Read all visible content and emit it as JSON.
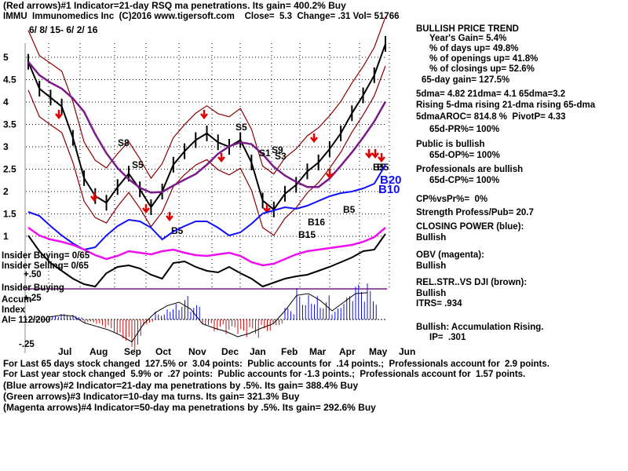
{
  "header": {
    "line1": "(Red arrows)#1 Indicator=21-day RSQ ma penetrations. Its gain= 400.2% Buy",
    "line2": "IMMU  Immunomedics Inc  (C)2016 www.tigersoft.com    Close=  5.3  Change= .31 Vol= 51766",
    "date_range": "6/ 8/ 15- 6/ 2/ 16"
  },
  "left_labels": {
    "insider_buying": "Insider Buying= 0/65",
    "insider_selling": "Insider Selling= 0/65",
    "plus50": "+.50",
    "insider_buying2": "Insider Buying",
    "accum": "Accum",
    "plus25": "+.25",
    "index": "Index",
    "ai": "AI= 112/200",
    "minus25": "-.25"
  },
  "right_panel": {
    "title": "BULLISH PRICE TREND",
    "years_gain": "Year's Gain= 5.4%",
    "days_up": "% of days up= 49.8%",
    "openings_up": "% of openings up= 41.8%",
    "closings_up": "% of closings up= 52.6%",
    "gain65": "65-day gain= 127.5%",
    "dma": "5dma= 4.82 21dma= 4.1 65dma=3.2",
    "rising": "Rising 5-dma rising 21-dma rising 65-dma",
    "aroc": "5dmaAROC= 814.8 %  PivotP= 4.33",
    "pr": "65d-PR%= 100%",
    "public": "Public is bullish",
    "op": "65d-OP%= 100%",
    "pros": "Professionals are bullish",
    "cp": "65d-CP%= 100%",
    "cpvspr": "CP%vsPr%=  0%",
    "strength": "Strength Profess/Pub= 20.7",
    "closing_power": "CLOSING POWER (blue):",
    "cp_bull": "Bullish",
    "obv": "OBV (magenta):",
    "obv_bull": "Bullish",
    "relstr": "REL.STR..VS DJI (brown):",
    "relstr_bull": "Bullish",
    "itrs": "ITRS= .934",
    "accum_bull": "Bullish: Accumulation Rising.",
    "ip": "IP=  .301"
  },
  "footer": {
    "line1": "For Last 65 days stock changed  127.5% or  3.04 points:  Public accounts for  .14 points.;  Professionals account for  2.9 points.",
    "line2": "For Last year stock changed  5.9% or  .27 points:  Public accounts for -1.3 points.;  Professionals account for  1.57 points.",
    "line3": "(Blue arrows)#2 Indicator=21-day ma penetrations by .5%. Its gain= 388.4% Buy",
    "line4": "(Green arrows)#3 Indicator=10-day ma turns. Its gain= 321.3% Buy",
    "line5": "(Magenta arrows)#4 Indicator=50-day ma penetrations by .5%. Its gain= 292.6% Buy"
  },
  "chart_data": {
    "type": "line",
    "y_ticks": [
      "5",
      "4.5",
      "4",
      "3.5",
      "3",
      "2.5",
      "2",
      "1.5",
      "1"
    ],
    "ylim": [
      0.75,
      5.35
    ],
    "x_months": [
      "Jul",
      "Aug",
      "Sep",
      "Oct",
      "Nov",
      "Dec",
      "Jan",
      "Feb",
      "Mar",
      "Apr",
      "May",
      "Jun"
    ],
    "grid": true,
    "price_close": [
      4.9,
      4.3,
      4.1,
      3.9,
      3.2,
      2.3,
      1.9,
      1.75,
      2.1,
      2.4,
      2.05,
      1.65,
      2.0,
      2.6,
      2.9,
      3.15,
      3.3,
      3.1,
      3.0,
      3.15,
      2.65,
      1.8,
      1.6,
      1.95,
      2.15,
      2.45,
      2.65,
      2.95,
      3.3,
      3.75,
      4.15,
      4.6,
      5.3
    ],
    "signal_labels": [
      "S8",
      "S5",
      "B5",
      "S5",
      "S1",
      "S9",
      "S3",
      "B15",
      "B16",
      "B5",
      "B5",
      "B5",
      "B20",
      "B10"
    ],
    "series": [
      {
        "name": "CLOSING POWER (blue)",
        "color": "#1010ff"
      },
      {
        "name": "OBV (magenta)",
        "color": "#ee10ee"
      },
      {
        "name": "REL.STR..VS DJI (brown)",
        "color": "#000000"
      }
    ],
    "accum_index": {
      "labels": [
        "+.25",
        "-.25"
      ],
      "values": [
        0.03,
        0.05,
        0.04,
        -0.04,
        -0.08,
        -0.12,
        -0.18,
        -0.26,
        -0.05,
        0.08,
        0.16,
        0.2,
        0.12,
        -0.05,
        -0.1,
        -0.14,
        -0.2,
        -0.16,
        -0.1,
        -0.05,
        0.1,
        0.28,
        0.3,
        0.22,
        0.1,
        0.2,
        0.3,
        0.31
      ],
      "pos_color": "#1010dd",
      "neg_color": "#cc1010"
    }
  }
}
